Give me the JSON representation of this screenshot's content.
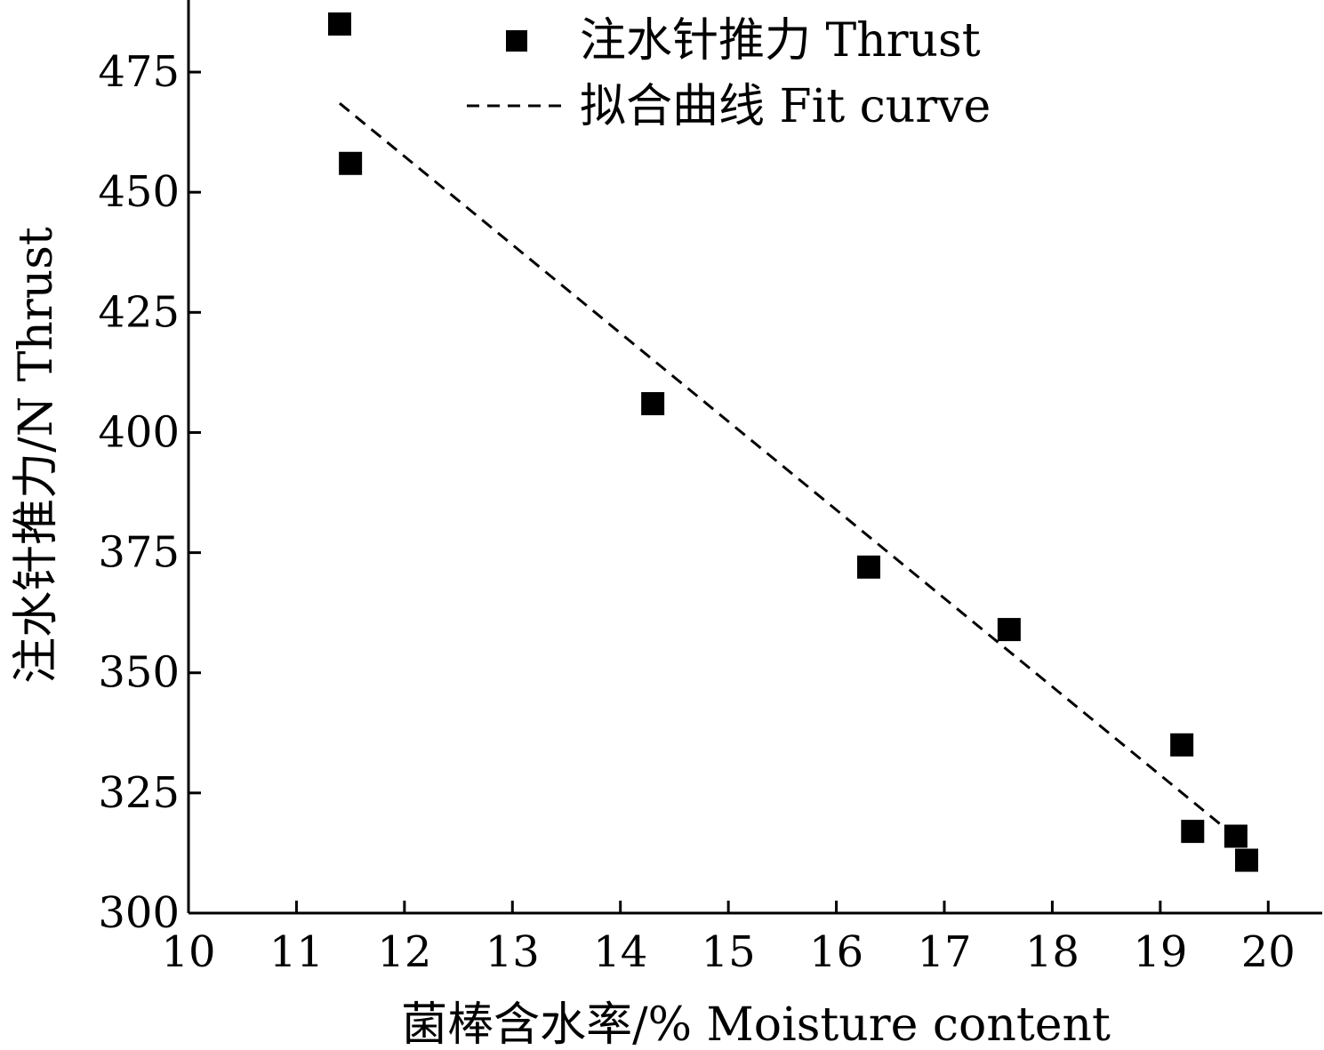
{
  "chart_data": {
    "type": "scatter",
    "xlabel": "菌棒含水率/%  Moisture content",
    "ylabel": "注水针推力/N  Thrust",
    "xlim": [
      10,
      20.5
    ],
    "ylim": [
      300,
      490
    ],
    "x_ticks": [
      10,
      11,
      12,
      13,
      14,
      15,
      16,
      17,
      18,
      19,
      20
    ],
    "y_ticks": [
      300,
      325,
      350,
      375,
      400,
      425,
      450,
      475
    ],
    "grid": false,
    "legend_position": "top-center",
    "series": [
      {
        "name": "注水针推力 Thrust",
        "kind": "scatter",
        "marker": "square",
        "color": "#000000",
        "x": [
          11.4,
          11.5,
          14.3,
          16.3,
          17.6,
          19.2,
          19.3,
          19.7,
          19.8
        ],
        "y": [
          485,
          456,
          406,
          372,
          359,
          335,
          317,
          316,
          311
        ]
      },
      {
        "name": "拟合曲线 Fit curve",
        "kind": "line",
        "style": "dashed",
        "color": "#000000",
        "x": [
          11.4,
          19.8
        ],
        "y": [
          468.5,
          314
        ]
      }
    ]
  }
}
